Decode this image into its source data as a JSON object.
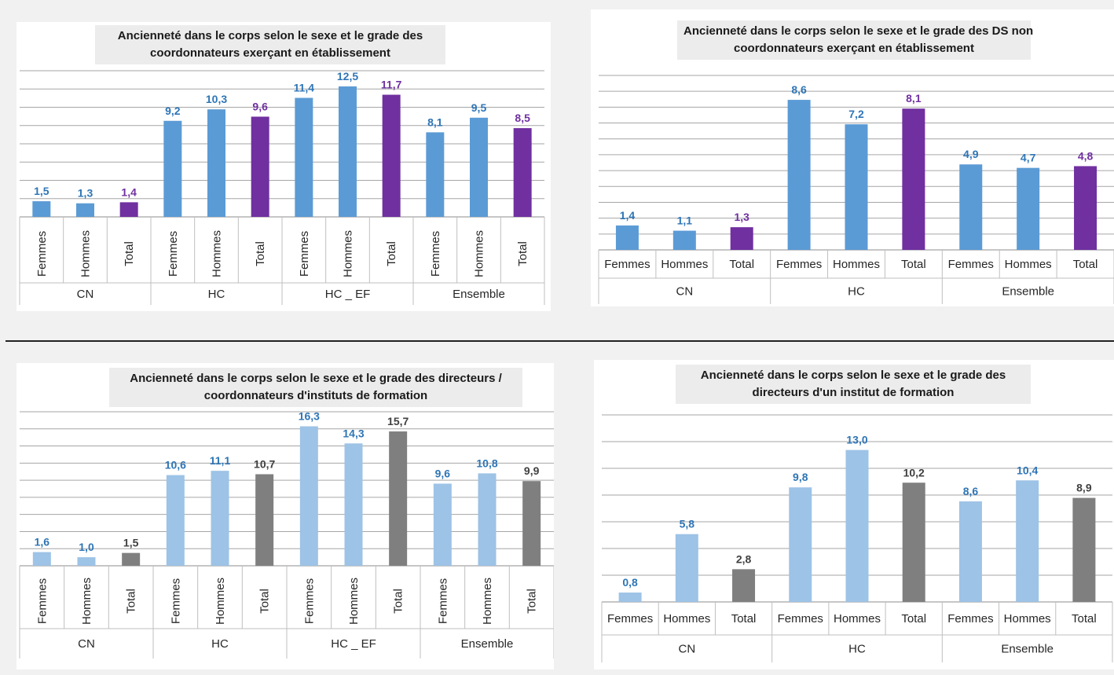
{
  "chart_data": [
    {
      "type": "bar",
      "title": [
        "Ancienneté dans le corps selon le sexe et le grade des",
        "coordonnateurs exerçant en établissement"
      ],
      "groups": [
        "CN",
        "HC",
        "HC _ EF",
        "Ensemble"
      ],
      "categories": [
        "Femmes",
        "Hommes",
        "Total"
      ],
      "values": [
        [
          1.5,
          1.3,
          1.4
        ],
        [
          9.2,
          10.3,
          9.6
        ],
        [
          11.4,
          12.5,
          11.7
        ],
        [
          8.1,
          9.5,
          8.5
        ]
      ],
      "value_labels": [
        [
          "1,5",
          "1,3",
          "1,4"
        ],
        [
          "9,2",
          "10,3",
          "9,6"
        ],
        [
          "11,4",
          "12,5",
          "11,7"
        ],
        [
          "8,1",
          "9,5",
          "8,5"
        ]
      ],
      "ylim": [
        0,
        14
      ],
      "grid": true,
      "tick_labels_rotated": true,
      "colors": {
        "Femmes": "#5b9bd5",
        "Hommes": "#5b9bd5",
        "Total": "#7030a0",
        "label_bar": "#2e75b6",
        "label_total": "#7030a0"
      }
    },
    {
      "type": "bar",
      "title": [
        "Ancienneté dans le corps selon le sexe et le grade des DS non",
        "coordonnateurs exerçant en établissement"
      ],
      "groups": [
        "CN",
        "HC",
        "Ensemble"
      ],
      "categories": [
        "Femmes",
        "Hommes",
        "Total"
      ],
      "values": [
        [
          1.4,
          1.1,
          1.3
        ],
        [
          8.6,
          7.2,
          8.1
        ],
        [
          4.9,
          4.7,
          4.8
        ]
      ],
      "value_labels": [
        [
          "1,4",
          "1,1",
          "1,3"
        ],
        [
          "8,6",
          "7,2",
          "8,1"
        ],
        [
          "4,9",
          "4,7",
          "4,8"
        ]
      ],
      "ylim": [
        0,
        10
      ],
      "grid": true,
      "tick_labels_rotated": false,
      "colors": {
        "Femmes": "#5b9bd5",
        "Hommes": "#5b9bd5",
        "Total": "#7030a0",
        "label_bar": "#2e75b6",
        "label_total": "#7030a0"
      }
    },
    {
      "type": "bar",
      "title": [
        "Ancienneté dans le corps selon le sexe et le grade des directeurs /",
        "coordonnateurs d'instituts de formation"
      ],
      "groups": [
        "CN",
        "HC",
        "HC _ EF",
        "Ensemble"
      ],
      "categories": [
        "Femmes",
        "Hommes",
        "Total"
      ],
      "values": [
        [
          1.6,
          1.0,
          1.5
        ],
        [
          10.6,
          11.1,
          10.7
        ],
        [
          16.3,
          14.3,
          15.7
        ],
        [
          9.6,
          10.8,
          9.9
        ]
      ],
      "value_labels": [
        [
          "1,6",
          "1,0",
          "1,5"
        ],
        [
          "10,6",
          "11,1",
          "10,7"
        ],
        [
          "16,3",
          "14,3",
          "15,7"
        ],
        [
          "9,6",
          "10,8",
          "9,9"
        ]
      ],
      "ylim": [
        0,
        18
      ],
      "grid": true,
      "tick_labels_rotated": true,
      "colors": {
        "Femmes": "#9dc3e6",
        "Hommes": "#9dc3e6",
        "Total": "#7f7f7f",
        "label_bar": "#2e75b6",
        "label_total": "#404040"
      }
    },
    {
      "type": "bar",
      "title": [
        "Ancienneté dans le corps selon le sexe et le grade des",
        "directeurs d'un institut de formation"
      ],
      "groups": [
        "CN",
        "HC",
        "Ensemble"
      ],
      "categories": [
        "Femmes",
        "Hommes",
        "Total"
      ],
      "values": [
        [
          0.8,
          5.8,
          2.8
        ],
        [
          9.8,
          13.0,
          10.2
        ],
        [
          8.6,
          10.4,
          8.9
        ]
      ],
      "value_labels": [
        [
          "0,8",
          "5,8",
          "2,8"
        ],
        [
          "9,8",
          "13,0",
          "10,2"
        ],
        [
          "8,6",
          "10,4",
          "8,9"
        ]
      ],
      "ylim": [
        0,
        16
      ],
      "grid": true,
      "tick_labels_rotated": false,
      "colors": {
        "Femmes": "#9dc3e6",
        "Hommes": "#9dc3e6",
        "Total": "#7f7f7f",
        "label_bar": "#2e75b6",
        "label_total": "#404040"
      }
    }
  ]
}
